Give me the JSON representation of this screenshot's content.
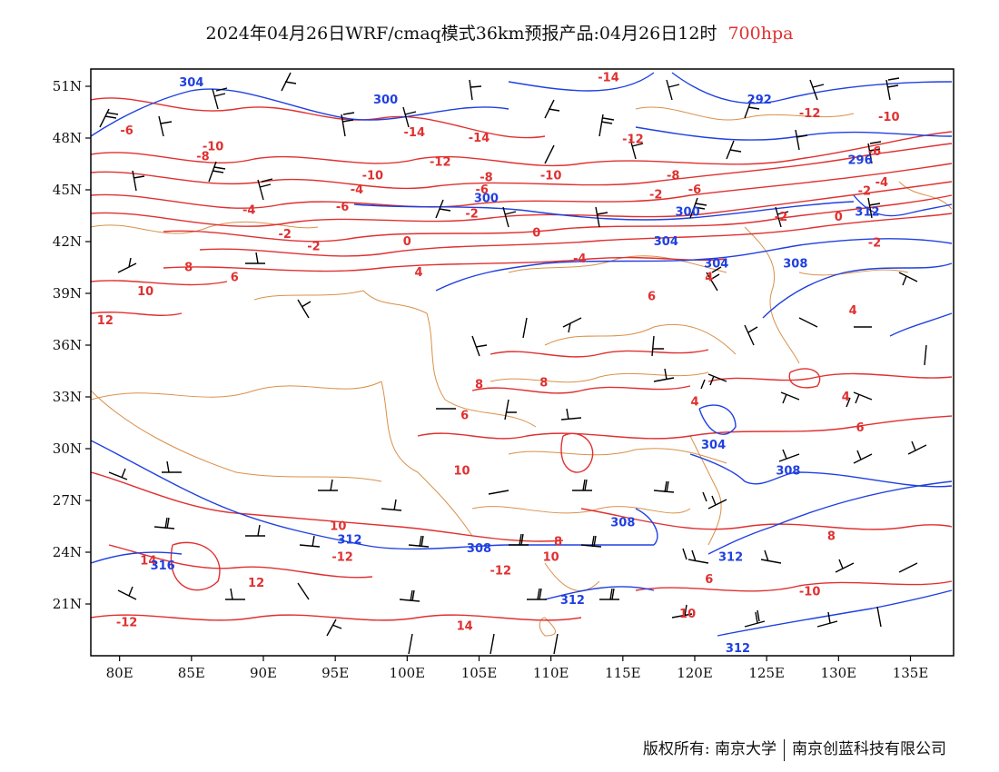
{
  "title": {
    "main": "2024年04月26日WRF/cmaq模式36km预报产品:04月26日12时",
    "level": "700hpa"
  },
  "colors": {
    "temperature": "#e03030",
    "height": "#2040e0",
    "border": "#d9904a",
    "wind": "#000000"
  },
  "axes": {
    "lat_labels": [
      "51N",
      "48N",
      "45N",
      "42N",
      "39N",
      "36N",
      "33N",
      "30N",
      "27N",
      "24N",
      "21N"
    ],
    "lat_values": [
      51,
      48,
      45,
      42,
      39,
      36,
      33,
      30,
      27,
      24,
      21
    ],
    "lon_labels": [
      "80E",
      "85E",
      "90E",
      "95E",
      "100E",
      "105E",
      "110E",
      "115E",
      "120E",
      "125E",
      "130E",
      "135E"
    ],
    "lon_values": [
      80,
      85,
      90,
      95,
      100,
      105,
      110,
      115,
      120,
      125,
      130,
      135
    ],
    "lon_range": [
      78,
      138
    ],
    "lat_range": [
      18,
      52
    ]
  },
  "temperature_labels": [
    {
      "text": "-6",
      "lon": 80.5,
      "lat": 48.2
    },
    {
      "text": "-10",
      "lon": 86.5,
      "lat": 47.3
    },
    {
      "text": "-8",
      "lon": 85.8,
      "lat": 46.7
    },
    {
      "text": "-14",
      "lon": 100.5,
      "lat": 48.1
    },
    {
      "text": "-14",
      "lon": 105.0,
      "lat": 47.8
    },
    {
      "text": "-12",
      "lon": 102.3,
      "lat": 46.4
    },
    {
      "text": "-14",
      "lon": 114.0,
      "lat": 51.3
    },
    {
      "text": "-12",
      "lon": 115.7,
      "lat": 47.7
    },
    {
      "text": "-12",
      "lon": 128.0,
      "lat": 49.2
    },
    {
      "text": "-10",
      "lon": 133.5,
      "lat": 49.0
    },
    {
      "text": "-10",
      "lon": 97.6,
      "lat": 45.6
    },
    {
      "text": "-8",
      "lon": 105.5,
      "lat": 45.5
    },
    {
      "text": "-6",
      "lon": 105.2,
      "lat": 44.8
    },
    {
      "text": "-10",
      "lon": 110.0,
      "lat": 45.6
    },
    {
      "text": "-8",
      "lon": 118.5,
      "lat": 45.6
    },
    {
      "text": "-6",
      "lon": 120.0,
      "lat": 44.8
    },
    {
      "text": "-2",
      "lon": 117.3,
      "lat": 44.5
    },
    {
      "text": "-4",
      "lon": 89.0,
      "lat": 43.6
    },
    {
      "text": "-6",
      "lon": 95.5,
      "lat": 43.8
    },
    {
      "text": "-2",
      "lon": 104.5,
      "lat": 43.4
    },
    {
      "text": "-2",
      "lon": 91.5,
      "lat": 42.2
    },
    {
      "text": "-2",
      "lon": 93.5,
      "lat": 41.5
    },
    {
      "text": "0",
      "lon": 100.0,
      "lat": 41.8
    },
    {
      "text": "0",
      "lon": 109.0,
      "lat": 42.3
    },
    {
      "text": "-4",
      "lon": 96.5,
      "lat": 44.8
    },
    {
      "text": "-2",
      "lon": 126.0,
      "lat": 43.2
    },
    {
      "text": "0",
      "lon": 130.0,
      "lat": 43.2
    },
    {
      "text": "-2",
      "lon": 132.5,
      "lat": 41.7
    },
    {
      "text": "-2",
      "lon": 131.8,
      "lat": 44.7
    },
    {
      "text": "-4",
      "lon": 133.0,
      "lat": 45.2
    },
    {
      "text": "-6",
      "lon": 132.5,
      "lat": 47.0
    },
    {
      "text": "8",
      "lon": 84.8,
      "lat": 40.3
    },
    {
      "text": "6",
      "lon": 88.0,
      "lat": 39.7
    },
    {
      "text": "4",
      "lon": 100.8,
      "lat": 40.0
    },
    {
      "text": "10",
      "lon": 81.8,
      "lat": 38.9
    },
    {
      "text": "12",
      "lon": 79.0,
      "lat": 37.2
    },
    {
      "text": "-4",
      "lon": 112.0,
      "lat": 40.8
    },
    {
      "text": "4",
      "lon": 121.0,
      "lat": 39.7
    },
    {
      "text": "4",
      "lon": 131.0,
      "lat": 37.8
    },
    {
      "text": "6",
      "lon": 117.0,
      "lat": 38.6
    },
    {
      "text": "8",
      "lon": 105.0,
      "lat": 33.5
    },
    {
      "text": "8",
      "lon": 109.5,
      "lat": 33.6
    },
    {
      "text": "6",
      "lon": 104.0,
      "lat": 31.7
    },
    {
      "text": "4",
      "lon": 120.0,
      "lat": 32.5
    },
    {
      "text": "4",
      "lon": 130.5,
      "lat": 32.8
    },
    {
      "text": "6",
      "lon": 131.5,
      "lat": 31.0
    },
    {
      "text": "10",
      "lon": 103.8,
      "lat": 28.5
    },
    {
      "text": "10",
      "lon": 95.2,
      "lat": 25.3
    },
    {
      "text": "-12",
      "lon": 95.5,
      "lat": 23.5
    },
    {
      "text": "14",
      "lon": 82.0,
      "lat": 23.3
    },
    {
      "text": "12",
      "lon": 89.5,
      "lat": 22.0
    },
    {
      "text": "8",
      "lon": 110.5,
      "lat": 24.4
    },
    {
      "text": "10",
      "lon": 110.0,
      "lat": 23.5
    },
    {
      "text": "-12",
      "lon": 106.5,
      "lat": 22.7
    },
    {
      "text": "8",
      "lon": 129.5,
      "lat": 24.7
    },
    {
      "text": "-10",
      "lon": 128.0,
      "lat": 21.5
    },
    {
      "text": "6",
      "lon": 121.0,
      "lat": 22.2
    },
    {
      "text": "10",
      "lon": 119.5,
      "lat": 20.2
    },
    {
      "text": "14",
      "lon": 104.0,
      "lat": 19.5
    },
    {
      "text": "-12",
      "lon": 80.5,
      "lat": 19.7
    }
  ],
  "height_labels": [
    {
      "text": "304",
      "lon": 85.0,
      "lat": 51.0
    },
    {
      "text": "300",
      "lon": 98.5,
      "lat": 50.0
    },
    {
      "text": "292",
      "lon": 124.5,
      "lat": 50.0
    },
    {
      "text": "296",
      "lon": 131.5,
      "lat": 46.5
    },
    {
      "text": "300",
      "lon": 105.5,
      "lat": 44.3
    },
    {
      "text": "300",
      "lon": 119.5,
      "lat": 43.5
    },
    {
      "text": "304",
      "lon": 121.5,
      "lat": 40.5
    },
    {
      "text": "308",
      "lon": 127.0,
      "lat": 40.5
    },
    {
      "text": "312",
      "lon": 132.0,
      "lat": 43.5
    },
    {
      "text": "304",
      "lon": 118.0,
      "lat": 41.8
    },
    {
      "text": "304",
      "lon": 121.3,
      "lat": 30.0
    },
    {
      "text": "308",
      "lon": 126.5,
      "lat": 28.5
    },
    {
      "text": "308",
      "lon": 115.0,
      "lat": 25.5
    },
    {
      "text": "308",
      "lon": 105.0,
      "lat": 24.0
    },
    {
      "text": "312",
      "lon": 96.0,
      "lat": 24.5
    },
    {
      "text": "312",
      "lon": 122.5,
      "lat": 23.5
    },
    {
      "text": "312",
      "lon": 111.5,
      "lat": 21.0
    },
    {
      "text": "316",
      "lon": 83.0,
      "lat": 23.0
    },
    {
      "text": "312",
      "lon": 123.0,
      "lat": 18.2
    }
  ],
  "footer": {
    "left": "版权所有: 南京大学",
    "right": "南京创蓝科技有限公司"
  }
}
